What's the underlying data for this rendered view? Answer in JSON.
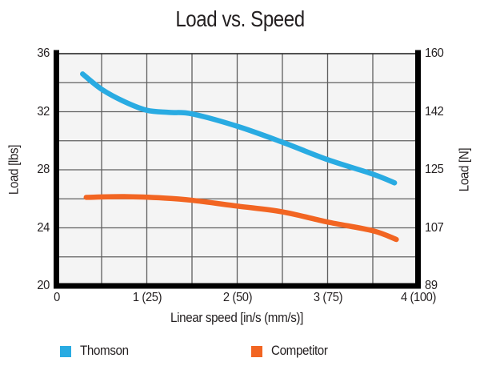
{
  "chart_data": {
    "type": "line",
    "title": "Load vs. Speed",
    "xlabel": "Linear speed [in/s (mm/s)]",
    "ylabel_left": "Load [lbs]",
    "ylabel_right": "Load [N]",
    "xlim": [
      0,
      4
    ],
    "ylim_left": [
      20,
      36
    ],
    "ylim_right": [
      89,
      160
    ],
    "x_grid_step": 0.5,
    "y_grid_step": 2,
    "grid": true,
    "legend_position": "bottom",
    "x_ticks": [
      {
        "value": 0,
        "label": "0"
      },
      {
        "value": 1,
        "label": "1 (25)"
      },
      {
        "value": 2,
        "label": "2 (50)"
      },
      {
        "value": 3,
        "label": "3 (75)"
      },
      {
        "value": 4,
        "label": "4 (100)"
      }
    ],
    "y_ticks_left": [
      {
        "value": 36,
        "label": "36"
      },
      {
        "value": 32,
        "label": "32"
      },
      {
        "value": 28,
        "label": "28"
      },
      {
        "value": 24,
        "label": "24"
      },
      {
        "value": 20,
        "label": "20"
      }
    ],
    "y_ticks_right": [
      {
        "value": 36,
        "label": "160"
      },
      {
        "value": 32,
        "label": "142"
      },
      {
        "value": 28,
        "label": "125"
      },
      {
        "value": 24,
        "label": "107"
      },
      {
        "value": 20,
        "label": "89"
      }
    ],
    "series": [
      {
        "name": "Thomson",
        "color": "#29ABE2",
        "points": [
          [
            0.29,
            34.6
          ],
          [
            0.5,
            33.55
          ],
          [
            0.75,
            32.7
          ],
          [
            1.0,
            32.1
          ],
          [
            1.25,
            31.95
          ],
          [
            1.5,
            31.85
          ],
          [
            2.0,
            31.0
          ],
          [
            2.5,
            29.9
          ],
          [
            3.0,
            28.7
          ],
          [
            3.5,
            27.7
          ],
          [
            3.74,
            27.1
          ]
        ]
      },
      {
        "name": "Competitor",
        "color": "#F26522",
        "points": [
          [
            0.33,
            26.1
          ],
          [
            0.75,
            26.15
          ],
          [
            1.2,
            26.05
          ],
          [
            1.5,
            25.9
          ],
          [
            2.0,
            25.5
          ],
          [
            2.5,
            25.1
          ],
          [
            3.0,
            24.4
          ],
          [
            3.5,
            23.8
          ],
          [
            3.76,
            23.2
          ]
        ]
      }
    ],
    "colors": {
      "grid": "#5f5f5f",
      "axis_frame": "#000000",
      "plot_background": "#f4f4f4",
      "text": "#231f20"
    }
  }
}
